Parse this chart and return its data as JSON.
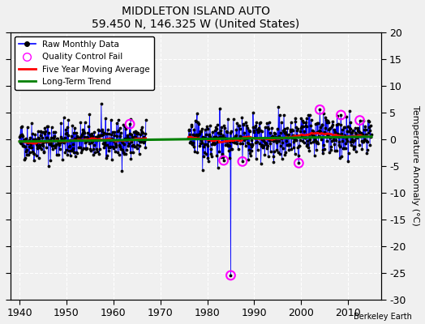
{
  "title": "MIDDLETON ISLAND AUTO",
  "subtitle": "59.450 N, 146.325 W (United States)",
  "ylabel": "Temperature Anomaly (°C)",
  "xlim": [
    1938,
    2017
  ],
  "ylim": [
    -30,
    20
  ],
  "yticks": [
    -30,
    -25,
    -20,
    -15,
    -10,
    -5,
    0,
    5,
    10,
    15,
    20
  ],
  "xticks": [
    1940,
    1950,
    1960,
    1970,
    1980,
    1990,
    2000,
    2010
  ],
  "background_color": "#f0f0f0",
  "plot_background": "#f0f0f0",
  "grid_color": "#ffffff",
  "raw_line_color": "blue",
  "raw_marker_color": "black",
  "qc_fail_color": "magenta",
  "moving_avg_color": "red",
  "trend_color": "green",
  "watermark": "Berkeley Earth",
  "segment1_start": 1940,
  "segment1_end": 1967,
  "segment2_start": 1976,
  "segment2_end": 2015,
  "seed": 42
}
